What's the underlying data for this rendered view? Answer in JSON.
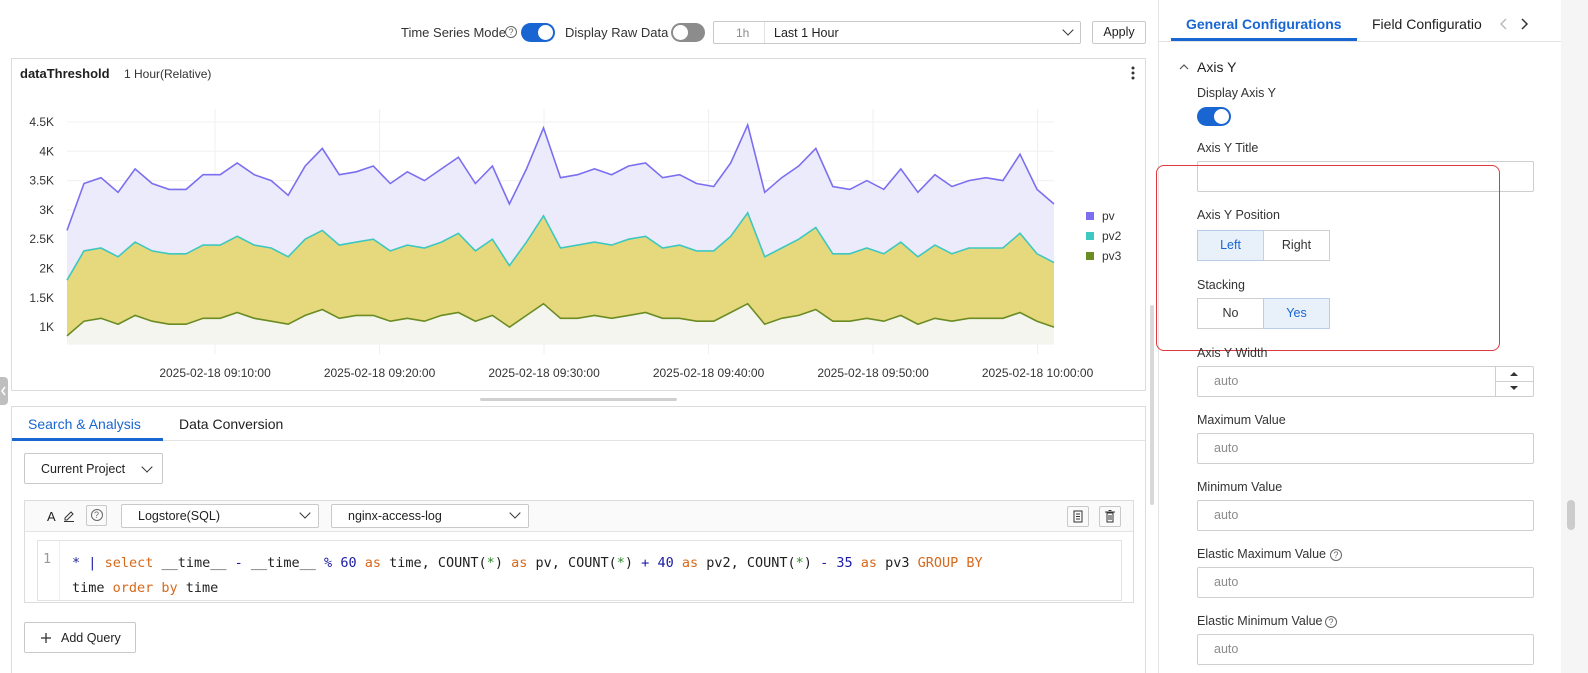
{
  "toolbar": {
    "time_series_mode_label": "Time Series Mode",
    "time_series_mode_on": true,
    "display_raw_data_label": "Display Raw Data",
    "display_raw_data_on": false,
    "time_short": "1h",
    "time_range": "Last 1 Hour",
    "apply_label": "Apply"
  },
  "chart_panel": {
    "title": "dataThreshold",
    "subtitle": "1 Hour(Relative)"
  },
  "chart_data": {
    "type": "area",
    "stacked": false,
    "y_ticks": [
      "4.5K",
      "4K",
      "3.5K",
      "3K",
      "2.5K",
      "2K",
      "1.5K",
      "1K"
    ],
    "y_tick_values": [
      4500,
      4000,
      3500,
      3000,
      2500,
      2000,
      1500,
      1000
    ],
    "ylim": [
      700,
      4750
    ],
    "x_ticks": [
      "2025-02-18 09:10:00",
      "2025-02-18 09:20:00",
      "2025-02-18 09:30:00",
      "2025-02-18 09:40:00",
      "2025-02-18 09:50:00",
      "2025-02-18 10:00:00"
    ],
    "x_tick_minutes": [
      10,
      20,
      30,
      40,
      50,
      60
    ],
    "x_start_minute": 1,
    "x_end_minute": 61,
    "legend_position": "right",
    "series": [
      {
        "name": "pv",
        "color": "#7b6ff0",
        "fill": "#ecebfb",
        "values": [
          2650,
          3450,
          3550,
          3300,
          3700,
          3450,
          3350,
          3350,
          3600,
          3600,
          3800,
          3600,
          3500,
          3250,
          3750,
          4050,
          3600,
          3650,
          3750,
          3450,
          3650,
          3500,
          3700,
          3900,
          3450,
          3750,
          3100,
          3700,
          4400,
          3550,
          3600,
          3700,
          3600,
          3750,
          3800,
          3550,
          3600,
          3450,
          3400,
          3800,
          4450,
          3300,
          3550,
          3750,
          4050,
          3400,
          3350,
          3500,
          3350,
          3700,
          3300,
          3600,
          3400,
          3500,
          3550,
          3500,
          3950,
          3350,
          3100
        ]
      },
      {
        "name": "pv2",
        "color": "#3fc7c1",
        "fill": "#e6d97d",
        "values": [
          1800,
          2300,
          2350,
          2200,
          2450,
          2300,
          2250,
          2250,
          2400,
          2400,
          2550,
          2400,
          2350,
          2200,
          2500,
          2650,
          2400,
          2450,
          2500,
          2300,
          2400,
          2350,
          2450,
          2600,
          2300,
          2500,
          2050,
          2450,
          2900,
          2350,
          2400,
          2450,
          2400,
          2500,
          2550,
          2350,
          2400,
          2300,
          2300,
          2550,
          2950,
          2200,
          2350,
          2500,
          2700,
          2250,
          2250,
          2350,
          2250,
          2450,
          2200,
          2400,
          2250,
          2350,
          2350,
          2350,
          2600,
          2250,
          2100
        ]
      },
      {
        "name": "pv3",
        "color": "#6b8c23",
        "fill": "#e6d97d",
        "values": [
          850,
          1100,
          1150,
          1050,
          1200,
          1100,
          1050,
          1050,
          1150,
          1150,
          1250,
          1150,
          1100,
          1050,
          1200,
          1300,
          1150,
          1200,
          1200,
          1100,
          1150,
          1100,
          1200,
          1250,
          1100,
          1200,
          1000,
          1200,
          1400,
          1150,
          1150,
          1200,
          1150,
          1200,
          1250,
          1150,
          1150,
          1100,
          1100,
          1250,
          1400,
          1050,
          1150,
          1200,
          1300,
          1100,
          1100,
          1150,
          1100,
          1200,
          1050,
          1150,
          1100,
          1150,
          1150,
          1150,
          1250,
          1100,
          1000
        ]
      }
    ]
  },
  "tabs": {
    "search_analysis": "Search & Analysis",
    "data_conversion": "Data Conversion"
  },
  "query": {
    "project_select": "Current Project",
    "font_icon": "A",
    "store_type": "Logstore(SQL)",
    "logstore": "nginx-access-log",
    "line_number": "1",
    "add_query": "Add Query"
  },
  "right_panel": {
    "tab_general": "General Configurations",
    "tab_field": "Field Configuratio",
    "section_title": "Axis Y",
    "display_axis_y_label": "Display Axis Y",
    "display_axis_y_on": true,
    "axis_y_title_label": "Axis Y Title",
    "axis_y_title_value": "",
    "axis_y_position_label": "Axis Y Position",
    "position_left": "Left",
    "position_right": "Right",
    "stacking_label": "Stacking",
    "stacking_no": "No",
    "stacking_yes": "Yes",
    "axis_y_width_label": "Axis Y Width",
    "axis_y_width_placeholder": "auto",
    "max_value_label": "Maximum Value",
    "max_value_placeholder": "auto",
    "min_value_label": "Minimum Value",
    "min_value_placeholder": "auto",
    "elastic_max_label": "Elastic Maximum Value",
    "elastic_max_placeholder": "auto",
    "elastic_min_label": "Elastic Minimum Value",
    "elastic_min_placeholder": "auto"
  },
  "colors": {
    "accent": "#1966d2",
    "highlight_border": "#e0383e"
  }
}
